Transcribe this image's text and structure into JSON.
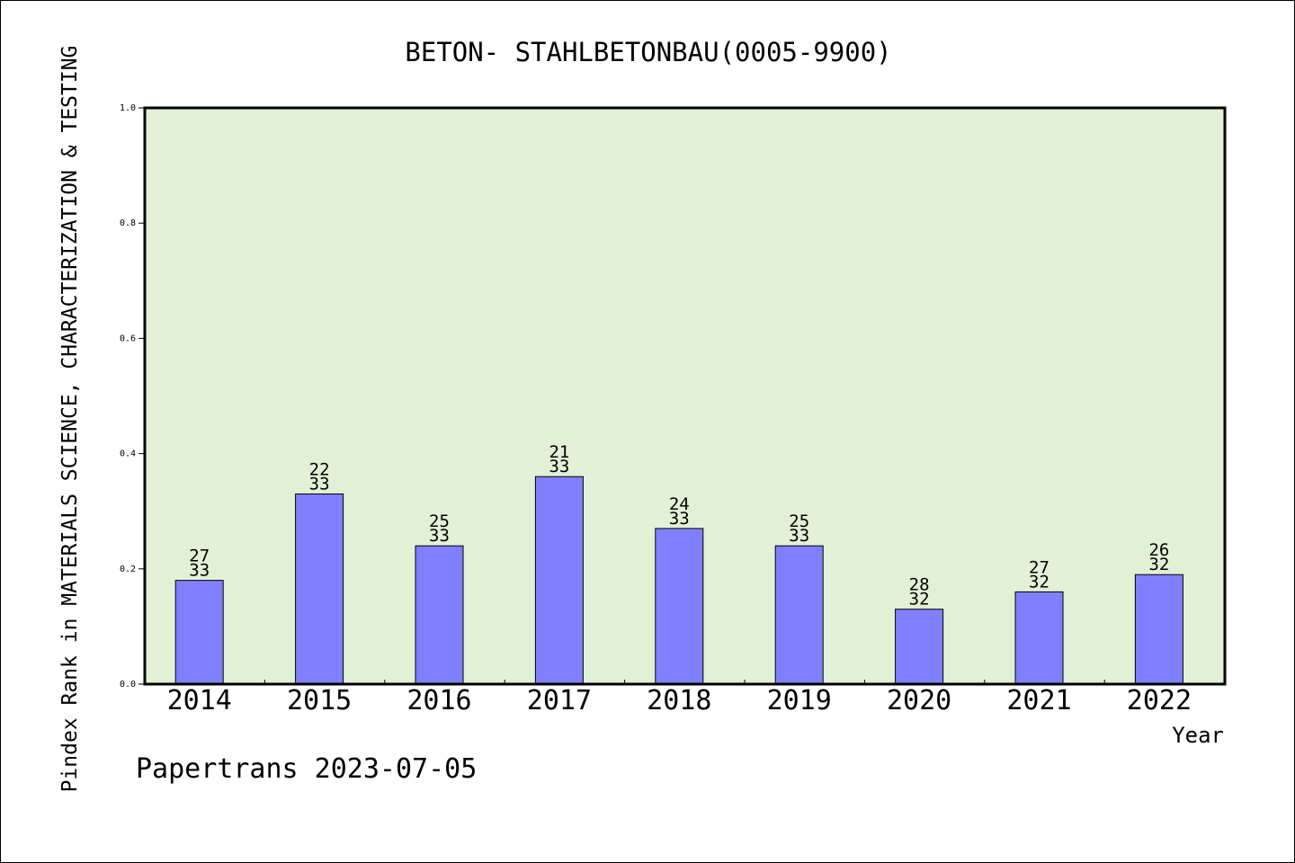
{
  "chart_data": {
    "type": "bar",
    "title": "BETON- STAHLBETONBAU(0005-9900)",
    "xlabel": "Year",
    "ylabel": "Pindex Rank in MATERIALS SCIENCE, CHARACTERIZATION & TESTING",
    "categories": [
      "2014",
      "2015",
      "2016",
      "2017",
      "2018",
      "2019",
      "2020",
      "2021",
      "2022"
    ],
    "values": [
      0.18,
      0.33,
      0.24,
      0.36,
      0.27,
      0.24,
      0.13,
      0.16,
      0.19
    ],
    "rank": [
      "27",
      "22",
      "25",
      "21",
      "24",
      "25",
      "28",
      "27",
      "26"
    ],
    "total": [
      "33",
      "33",
      "33",
      "33",
      "33",
      "33",
      "32",
      "32",
      "32"
    ],
    "ylim": [
      0,
      1.0
    ],
    "yticks": [
      "0.0",
      "0.2",
      "0.4",
      "0.6",
      "0.8",
      "1.0"
    ],
    "grid": false,
    "colors": {
      "bar": "#8080ff",
      "plot_background": "#e2f0d6"
    }
  },
  "footer": "Papertrans 2023-07-05"
}
